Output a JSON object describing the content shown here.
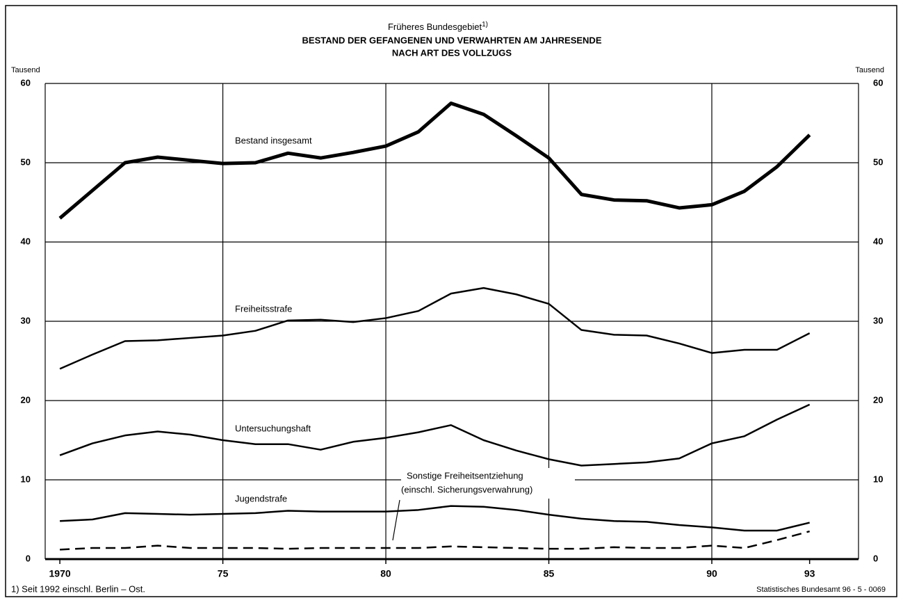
{
  "chart_data": {
    "type": "line",
    "title_pre": "Früheres Bundesgebiet",
    "title_note_ref": "1)",
    "title_lines": [
      "BESTAND DER GEFANGENEN UND VERWAHRTEN AM JAHRESENDE",
      "NACH ART DES VOLLZUGS"
    ],
    "y_label": "Tausend",
    "y2_label": "Tausend",
    "footnote": "1) Seit 1992 einschl. Berlin – Ost.",
    "source": "Statistisches Bundesamt 96 - 5 - 0069",
    "x": [
      1970,
      1971,
      1972,
      1973,
      1974,
      1975,
      1976,
      1977,
      1978,
      1979,
      1980,
      1981,
      1982,
      1983,
      1984,
      1985,
      1986,
      1987,
      1988,
      1989,
      1990,
      1991,
      1992,
      1993
    ],
    "xlim": [
      1969.55,
      1994.5
    ],
    "xticks": [
      {
        "value": 1970,
        "label": "1970"
      },
      {
        "value": 1975,
        "label": "75"
      },
      {
        "value": 1980,
        "label": "80"
      },
      {
        "value": 1985,
        "label": "85"
      },
      {
        "value": 1990,
        "label": "90"
      },
      {
        "value": 1993,
        "label": "93"
      }
    ],
    "ylim": [
      0,
      60
    ],
    "yticks": [
      0,
      10,
      20,
      30,
      40,
      50,
      60
    ],
    "y2lim": [
      0,
      60
    ],
    "y2ticks": [
      0,
      10,
      20,
      30,
      40,
      50,
      60
    ],
    "grid": true,
    "series": [
      {
        "name": "Bestand insgesamt",
        "color": "#000000",
        "width": 5,
        "dashed": false,
        "values": [
          43.0,
          46.5,
          50.0,
          50.7,
          50.3,
          49.9,
          50.0,
          51.2,
          50.6,
          51.3,
          52.1,
          53.9,
          57.5,
          56.1,
          53.4,
          50.6,
          46.0,
          45.3,
          45.2,
          44.3,
          44.7,
          46.4,
          49.5,
          53.5
        ]
      },
      {
        "name": "Freiheitsstrafe",
        "color": "#000000",
        "width": 2.5,
        "dashed": false,
        "values": [
          24.0,
          25.8,
          27.5,
          27.6,
          27.9,
          28.2,
          28.8,
          30.1,
          30.2,
          29.9,
          30.4,
          31.3,
          33.5,
          34.2,
          33.4,
          32.2,
          28.9,
          28.3,
          28.2,
          27.2,
          26.0,
          26.4,
          26.4,
          28.5
        ]
      },
      {
        "name": "Untersuchungshaft",
        "color": "#000000",
        "width": 2.5,
        "dashed": false,
        "values": [
          13.1,
          14.6,
          15.6,
          16.1,
          15.7,
          15.0,
          14.5,
          14.5,
          13.8,
          14.8,
          15.3,
          16.0,
          16.9,
          15.0,
          13.7,
          12.6,
          11.8,
          12.0,
          12.2,
          12.7,
          14.6,
          15.5,
          17.6,
          19.5
        ]
      },
      {
        "name": "Jugendstrafe",
        "color": "#000000",
        "width": 2.5,
        "dashed": false,
        "values": [
          4.8,
          5.0,
          5.8,
          5.7,
          5.6,
          5.7,
          5.8,
          6.1,
          6.0,
          6.0,
          6.0,
          6.2,
          6.7,
          6.6,
          6.2,
          5.6,
          5.1,
          4.8,
          4.7,
          4.3,
          4.0,
          3.6,
          3.6,
          4.6
        ]
      },
      {
        "name": "Sonstige Freiheitsentziehung",
        "name_detail": "(einschl. Sicherungsverwahrung)",
        "color": "#000000",
        "width": 2.5,
        "dashed": true,
        "values": [
          1.2,
          1.4,
          1.4,
          1.7,
          1.4,
          1.4,
          1.4,
          1.3,
          1.4,
          1.4,
          1.4,
          1.4,
          1.6,
          1.5,
          1.4,
          1.3,
          1.3,
          1.5,
          1.4,
          1.4,
          1.7,
          1.4,
          2.4,
          3.5
        ]
      }
    ]
  }
}
